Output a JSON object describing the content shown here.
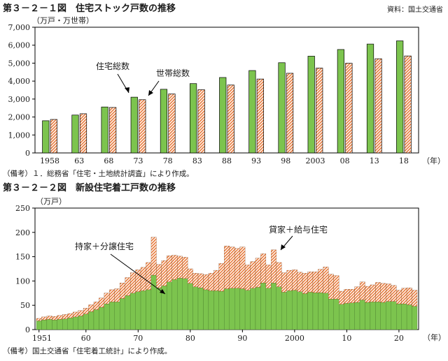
{
  "source_label": "資料：国土交通省",
  "hatch_color": "#e8793a",
  "green_color": "#7cc44e",
  "chart_data": [
    {
      "type": "bar",
      "title": "第３－２－１図　住宅ストック戸数の推移",
      "unit": "（万戸・万世帯）",
      "ylim": [
        0,
        7000
      ],
      "yticks": [
        "0",
        "1,000",
        "2,000",
        "3,000",
        "4,000",
        "5,000",
        "6,000",
        "7,000"
      ],
      "xunit": "（年）",
      "categories": [
        "1958",
        "63",
        "68",
        "73",
        "78",
        "83",
        "88",
        "93",
        "98",
        "2003",
        "08",
        "13",
        "18"
      ],
      "series": [
        {
          "name": "住宅総数",
          "style": "solid-green",
          "values": [
            1793,
            2109,
            2559,
            3106,
            3545,
            3861,
            4201,
            4588,
            5025,
            5389,
            5759,
            6063,
            6241
          ]
        },
        {
          "name": "世帯総数",
          "style": "hatched-orange",
          "values": [
            1865,
            2182,
            2532,
            2965,
            3284,
            3520,
            3781,
            4116,
            4436,
            4726,
            4997,
            5245,
            5400
          ]
        }
      ],
      "note": "（備考）１．総務省「住宅・土地統計調査」により作成。"
    },
    {
      "type": "bar",
      "stacked": true,
      "title": "第３－２－２図　新設住宅着工戸数の推移",
      "unit": "（万戸）",
      "ylim": [
        0,
        250
      ],
      "yticks": [
        "0",
        "50",
        "100",
        "150",
        "200",
        "250"
      ],
      "xunit": "（年）",
      "xticks": [
        {
          "label": "1951",
          "year": 1951
        },
        {
          "label": "60",
          "year": 1960
        },
        {
          "label": "70",
          "year": 1970
        },
        {
          "label": "80",
          "year": 1980
        },
        {
          "label": "90",
          "year": 1990
        },
        {
          "label": "2000",
          "year": 2000
        },
        {
          "label": "10",
          "year": 2010
        },
        {
          "label": "20",
          "year": 2020
        }
      ],
      "x": [
        1951,
        1952,
        1953,
        1954,
        1955,
        1956,
        1957,
        1958,
        1959,
        1960,
        1961,
        1962,
        1963,
        1964,
        1965,
        1966,
        1967,
        1968,
        1969,
        1970,
        1971,
        1972,
        1973,
        1974,
        1975,
        1976,
        1977,
        1978,
        1979,
        1980,
        1981,
        1982,
        1983,
        1984,
        1985,
        1986,
        1987,
        1988,
        1989,
        1990,
        1991,
        1992,
        1993,
        1994,
        1995,
        1996,
        1997,
        1998,
        1999,
        2000,
        2001,
        2002,
        2003,
        2004,
        2005,
        2006,
        2007,
        2008,
        2009,
        2010,
        2011,
        2012,
        2013,
        2014,
        2015,
        2016,
        2017,
        2018,
        2019,
        2020,
        2021,
        2022,
        2023
      ],
      "series": [
        {
          "name": "持家＋分譲住宅",
          "style": "solid-green",
          "values": [
            18,
            20,
            21,
            20,
            21,
            22,
            24,
            26,
            28,
            32,
            37,
            41,
            46,
            53,
            57,
            57,
            64,
            70,
            75,
            78,
            80,
            82,
            112,
            86,
            90,
            98,
            103,
            106,
            105,
            95,
            88,
            86,
            82,
            80,
            80,
            79,
            84,
            85,
            85,
            84,
            81,
            85,
            87,
            96,
            85,
            96,
            88,
            77,
            80,
            81,
            78,
            74,
            77,
            76,
            76,
            75,
            63,
            63,
            52,
            54,
            55,
            56,
            61,
            56,
            57,
            57,
            56,
            58,
            58,
            53,
            53,
            51,
            48
          ]
        },
        {
          "name": "貸家＋給与住宅",
          "style": "hatched-orange",
          "values": [
            5,
            6,
            7,
            7,
            8,
            9,
            9,
            10,
            11,
            12,
            14,
            16,
            19,
            22,
            25,
            27,
            32,
            37,
            42,
            45,
            48,
            56,
            78,
            48,
            52,
            54,
            50,
            45,
            44,
            30,
            28,
            29,
            31,
            36,
            42,
            57,
            88,
            85,
            82,
            86,
            52,
            55,
            60,
            60,
            48,
            68,
            50,
            40,
            42,
            42,
            40,
            42,
            42,
            43,
            48,
            54,
            51,
            48,
            27,
            29,
            28,
            32,
            37,
            33,
            35,
            40,
            39,
            36,
            33,
            28,
            32,
            35,
            33
          ]
        }
      ],
      "note": "（備考）国土交通省「住宅着工統計」により作成。"
    }
  ]
}
